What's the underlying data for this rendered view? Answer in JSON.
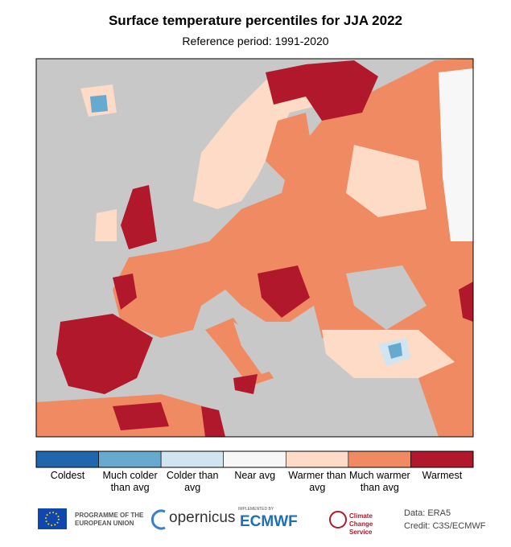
{
  "title": "Surface temperature percentiles for JJA 2022",
  "subtitle": "Reference period: 1991-2020",
  "legend": {
    "items": [
      {
        "label": "Coldest",
        "color": "#2166ac"
      },
      {
        "label": "Much colder than avg",
        "color": "#67a9cf"
      },
      {
        "label": "Colder than avg",
        "color": "#d1e5f0"
      },
      {
        "label": "Near avg",
        "color": "#f7f7f7"
      },
      {
        "label": "Warmer than avg",
        "color": "#fddbc7"
      },
      {
        "label": "Much warmer than avg",
        "color": "#ef8a62"
      },
      {
        "label": "Warmest",
        "color": "#b2182b"
      }
    ]
  },
  "footer": {
    "eu": "PROGRAMME OF THE EUROPEAN UNION",
    "copernicus": "opernicus",
    "implemented": "IMPLEMENTED BY",
    "ecmwf": "ECMWF",
    "c3s": "Climate Change Service",
    "data": "Data: ERA5",
    "credit": "Credit: C3S/ECMWF"
  }
}
